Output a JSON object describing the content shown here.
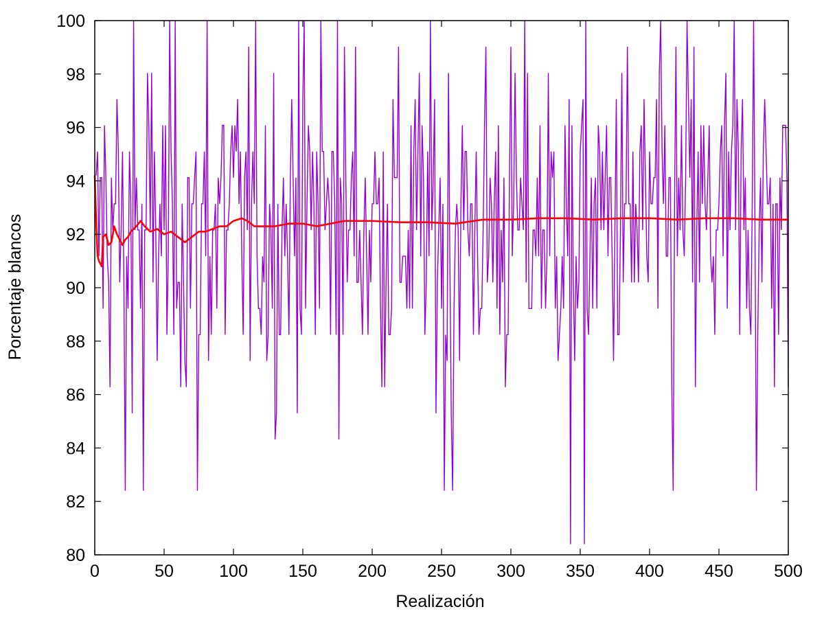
{
  "chart_data": {
    "type": "line",
    "title": "",
    "xlabel": "Realización",
    "ylabel": "Porcentaje blancos",
    "xlim": [
      0,
      500
    ],
    "ylim": [
      80,
      100
    ],
    "xticks": [
      0,
      50,
      100,
      150,
      200,
      250,
      300,
      350,
      400,
      450,
      500
    ],
    "yticks": [
      80,
      82,
      84,
      86,
      88,
      90,
      92,
      94,
      96,
      98,
      100
    ],
    "grid": false,
    "legend": "none",
    "series": [
      {
        "role": "per-realization percentage",
        "color": "#9400d3",
        "style": "impulse-like jagged line",
        "x_range": [
          1,
          500
        ],
        "approx_mean": 92.4,
        "approx_std": 3.3,
        "min": 80.4,
        "max": 100,
        "notable_points": [
          {
            "x": 1,
            "y": 94.2
          },
          {
            "x": 22,
            "y": 82.4
          },
          {
            "x": 28,
            "y": 100
          },
          {
            "x": 35,
            "y": 82.4
          },
          {
            "x": 74,
            "y": 82.4
          },
          {
            "x": 81,
            "y": 100
          },
          {
            "x": 147,
            "y": 100
          },
          {
            "x": 163,
            "y": 100
          },
          {
            "x": 175,
            "y": 100
          },
          {
            "x": 252,
            "y": 82.4
          },
          {
            "x": 258,
            "y": 82.4
          },
          {
            "x": 343,
            "y": 80.4
          },
          {
            "x": 353,
            "y": 80.4
          },
          {
            "x": 354,
            "y": 100
          },
          {
            "x": 417,
            "y": 82.4
          },
          {
            "x": 427,
            "y": 100
          },
          {
            "x": 461,
            "y": 100
          },
          {
            "x": 475,
            "y": 100
          },
          {
            "x": 477,
            "y": 82.4
          }
        ]
      },
      {
        "role": "running average",
        "color": "#ff0000",
        "style": "line",
        "x": [
          0,
          1,
          2,
          3,
          5,
          6,
          8,
          10,
          12,
          14,
          16,
          18,
          20,
          22,
          24,
          26,
          28,
          30,
          33,
          36,
          40,
          45,
          50,
          55,
          60,
          65,
          70,
          75,
          80,
          85,
          90,
          95,
          100,
          106,
          110,
          115,
          120,
          130,
          140,
          150,
          160,
          170,
          180,
          200,
          220,
          240,
          260,
          280,
          300,
          320,
          340,
          360,
          380,
          400,
          420,
          440,
          460,
          480,
          500
        ],
        "y": [
          94.2,
          92.5,
          91.2,
          91.0,
          90.8,
          91.9,
          92.0,
          91.6,
          91.7,
          92.3,
          92.0,
          91.8,
          91.6,
          91.8,
          91.9,
          92.1,
          92.2,
          92.3,
          92.5,
          92.3,
          92.1,
          92.2,
          92.0,
          92.1,
          91.9,
          91.7,
          91.9,
          92.1,
          92.1,
          92.2,
          92.3,
          92.3,
          92.5,
          92.6,
          92.5,
          92.3,
          92.3,
          92.3,
          92.4,
          92.4,
          92.3,
          92.4,
          92.5,
          92.5,
          92.45,
          92.45,
          92.4,
          92.55,
          92.55,
          92.6,
          92.6,
          92.55,
          92.6,
          92.6,
          92.55,
          92.6,
          92.6,
          92.55,
          92.55
        ]
      }
    ]
  }
}
